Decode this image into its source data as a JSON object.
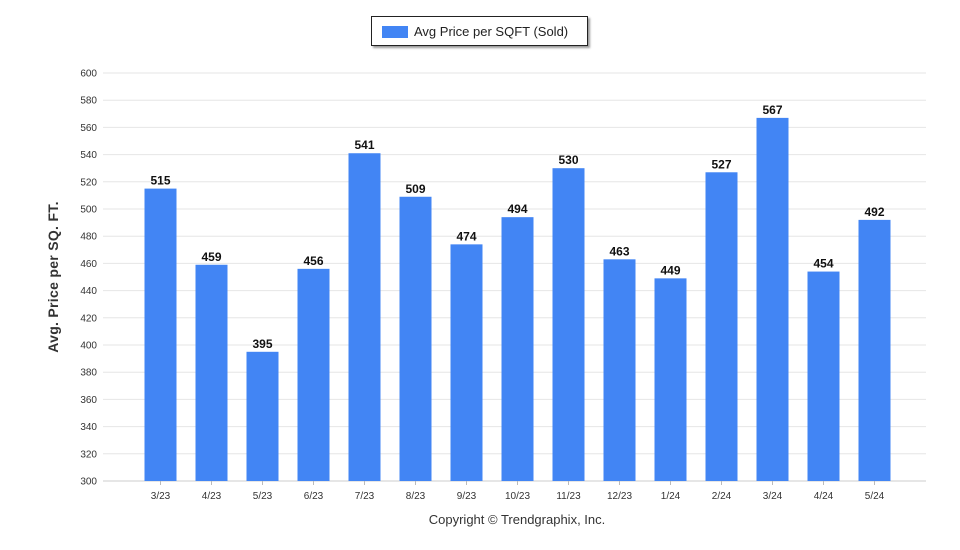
{
  "colors": {
    "bar": "#4285f4",
    "grid": "#e6e6e6",
    "axis_text": "#333333",
    "label_text": "#111111"
  },
  "legend": {
    "label": "Avg Price per SQFT (Sold)"
  },
  "footer": {
    "copyright": "Copyright © Trendgraphix, Inc."
  },
  "chart_data": {
    "type": "bar",
    "categories": [
      "3/23",
      "4/23",
      "5/23",
      "6/23",
      "7/23",
      "8/23",
      "9/23",
      "10/23",
      "11/23",
      "12/23",
      "1/24",
      "2/24",
      "3/24",
      "4/24",
      "5/24"
    ],
    "series": [
      {
        "name": "Avg Price per SQFT (Sold)",
        "values": [
          515,
          459,
          395,
          456,
          541,
          509,
          474,
          494,
          530,
          463,
          449,
          527,
          567,
          454,
          492
        ]
      }
    ],
    "ylabel": "Avg. Price per SQ. FT.",
    "xlabel": "",
    "ylim": [
      300,
      600
    ],
    "yticks": [
      300,
      320,
      340,
      360,
      380,
      400,
      420,
      440,
      460,
      480,
      500,
      520,
      540,
      560,
      580,
      600
    ],
    "grid": true,
    "legend_position": "top-center",
    "data_labels": true
  }
}
